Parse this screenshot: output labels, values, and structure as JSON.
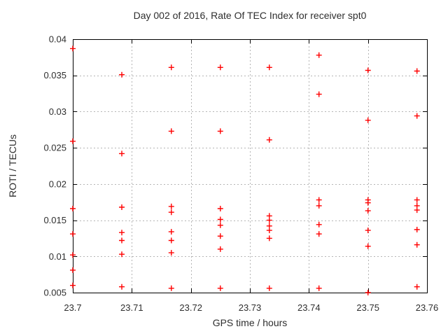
{
  "chart_data": {
    "type": "scatter",
    "title": "Day 002 of 2016, Rate Of TEC Index for receiver spt0",
    "xlabel": "GPS time / hours",
    "ylabel": "ROTI / TECUs",
    "xlim": [
      23.7,
      23.76
    ],
    "ylim": [
      0.005,
      0.04
    ],
    "grid": true,
    "legend": "none",
    "xticks": {
      "values": [
        23.7,
        23.71,
        23.72,
        23.73,
        23.74,
        23.75,
        23.76
      ],
      "labels": [
        "23.7",
        "23.71",
        "23.72",
        "23.73",
        "23.74",
        "23.75",
        "23.76"
      ]
    },
    "yticks": {
      "values": [
        0.005,
        0.01,
        0.015,
        0.02,
        0.025,
        0.03,
        0.035,
        0.04
      ],
      "labels": [
        "0.005",
        "0.01",
        "0.015",
        "0.02",
        "0.025",
        "0.03",
        "0.035",
        "0.04"
      ]
    },
    "marker": {
      "shape": "plus",
      "size": 9
    },
    "colors": {
      "marker": "#ff0000",
      "axis": "#000000",
      "grid": "#b5b5b5",
      "text": "#2e2e2e"
    },
    "series": [
      {
        "name": "ROTI",
        "points": [
          [
            23.7,
            0.0387
          ],
          [
            23.7,
            0.0259
          ],
          [
            23.7,
            0.0166
          ],
          [
            23.7,
            0.0131
          ],
          [
            23.7,
            0.0102
          ],
          [
            23.7,
            0.0081
          ],
          [
            23.7,
            0.006
          ],
          [
            23.7083,
            0.0351
          ],
          [
            23.7083,
            0.0242
          ],
          [
            23.7083,
            0.0168
          ],
          [
            23.7083,
            0.0133
          ],
          [
            23.7083,
            0.0122
          ],
          [
            23.7083,
            0.0103
          ],
          [
            23.7083,
            0.0058
          ],
          [
            23.7167,
            0.0361
          ],
          [
            23.7167,
            0.0273
          ],
          [
            23.7167,
            0.0169
          ],
          [
            23.7167,
            0.0161
          ],
          [
            23.7167,
            0.0134
          ],
          [
            23.7167,
            0.0122
          ],
          [
            23.7167,
            0.0105
          ],
          [
            23.7167,
            0.0056
          ],
          [
            23.725,
            0.0361
          ],
          [
            23.725,
            0.0273
          ],
          [
            23.725,
            0.0166
          ],
          [
            23.725,
            0.0151
          ],
          [
            23.725,
            0.0143
          ],
          [
            23.725,
            0.0128
          ],
          [
            23.725,
            0.011
          ],
          [
            23.725,
            0.0056
          ],
          [
            23.7333,
            0.0361
          ],
          [
            23.7333,
            0.0261
          ],
          [
            23.7333,
            0.0156
          ],
          [
            23.7333,
            0.015
          ],
          [
            23.7333,
            0.0142
          ],
          [
            23.7333,
            0.0136
          ],
          [
            23.7333,
            0.0125
          ],
          [
            23.7333,
            0.0056
          ],
          [
            23.7417,
            0.0378
          ],
          [
            23.7417,
            0.0324
          ],
          [
            23.7417,
            0.0178
          ],
          [
            23.7417,
            0.017
          ],
          [
            23.7417,
            0.0144
          ],
          [
            23.7417,
            0.0131
          ],
          [
            23.7417,
            0.0056
          ],
          [
            23.75,
            0.0357
          ],
          [
            23.75,
            0.0288
          ],
          [
            23.75,
            0.0178
          ],
          [
            23.75,
            0.0174
          ],
          [
            23.75,
            0.0163
          ],
          [
            23.75,
            0.0136
          ],
          [
            23.75,
            0.0114
          ],
          [
            23.75,
            0.005
          ],
          [
            23.7583,
            0.0356
          ],
          [
            23.7583,
            0.0294
          ],
          [
            23.7583,
            0.0178
          ],
          [
            23.7583,
            0.017
          ],
          [
            23.7583,
            0.0164
          ],
          [
            23.7583,
            0.0137
          ],
          [
            23.7583,
            0.0116
          ],
          [
            23.7583,
            0.0058
          ]
        ]
      }
    ]
  }
}
